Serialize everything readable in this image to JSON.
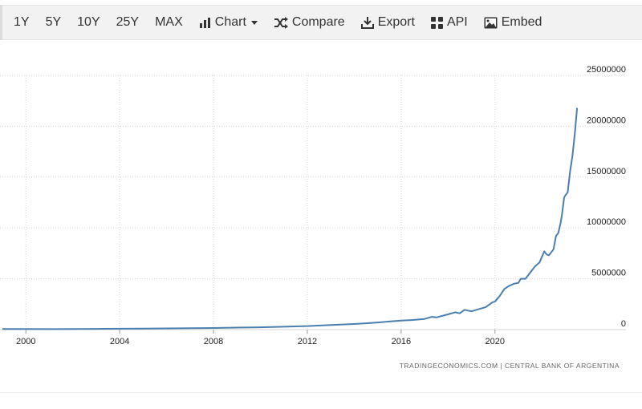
{
  "toolbar": {
    "ranges": [
      "1Y",
      "5Y",
      "10Y",
      "25Y",
      "MAX"
    ],
    "chart_label": "Chart",
    "compare_label": "Compare",
    "export_label": "Export",
    "api_label": "API",
    "embed_label": "Embed",
    "icons": {
      "chart": "bar-chart-icon",
      "compare": "shuffle-icon",
      "export": "download-icon",
      "api": "grid-icon",
      "embed": "image-icon"
    }
  },
  "source_note": "TRADINGECONOMICS.COM  |  CENTRAL BANK OF ARGENTINA",
  "colors": {
    "line": "#4a7fb0",
    "grid": "#d6d6d6",
    "text": "#333333"
  },
  "chart_data": {
    "type": "line",
    "title": "",
    "xlabel": "",
    "ylabel": "",
    "xlim": [
      1999.0,
      2023.6
    ],
    "ylim": [
      0,
      25000000
    ],
    "x_ticks": [
      2000,
      2004,
      2008,
      2012,
      2016,
      2020
    ],
    "x_tick_labels": [
      "2000",
      "2004",
      "2008",
      "2012",
      "2016",
      "2020"
    ],
    "y_ticks": [
      0,
      5000000,
      10000000,
      15000000,
      20000000,
      25000000
    ],
    "y_tick_labels": [
      "0",
      "5000000",
      "10000000",
      "15000000",
      "20000000",
      "25000000"
    ],
    "grid": true,
    "legend": "none",
    "series": [
      {
        "x": [
          1999.0,
          2000.0,
          2001.0,
          2002.0,
          2003.0,
          2004.0,
          2005.0,
          2006.0,
          2007.0,
          2008.0,
          2009.0,
          2010.0,
          2011.0,
          2012.0,
          2013.0,
          2014.0,
          2014.5,
          2015.0,
          2015.5,
          2016.0,
          2016.5,
          2017.0,
          2017.3,
          2017.5,
          2018.0,
          2018.3,
          2018.5,
          2018.7,
          2019.0,
          2019.3,
          2019.6,
          2019.9,
          2020.0,
          2020.2,
          2020.4,
          2020.6,
          2020.8,
          2021.0,
          2021.1,
          2021.3,
          2021.5,
          2021.7,
          2021.9,
          2022.1,
          2022.2,
          2022.3,
          2022.5,
          2022.6,
          2022.7,
          2022.8,
          2022.85,
          2022.95,
          2023.0,
          2023.1,
          2023.2,
          2023.3,
          2023.4,
          2023.5
        ],
        "y": [
          60000,
          60000,
          50000,
          60000,
          70000,
          85000,
          100000,
          120000,
          140000,
          160000,
          200000,
          230000,
          280000,
          350000,
          450000,
          550000,
          620000,
          700000,
          800000,
          880000,
          950000,
          1050000,
          1250000,
          1200000,
          1500000,
          1700000,
          1600000,
          1950000,
          1800000,
          2000000,
          2200000,
          2700000,
          2750000,
          3300000,
          4000000,
          4300000,
          4500000,
          4600000,
          5000000,
          5000000,
          5600000,
          6200000,
          6600000,
          7700000,
          7400000,
          7300000,
          7900000,
          9200000,
          9500000,
          10500000,
          11200000,
          13000000,
          13200000,
          13500000,
          15500000,
          17000000,
          19200000,
          21800000
        ]
      }
    ]
  }
}
